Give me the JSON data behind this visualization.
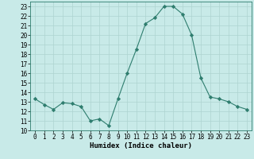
{
  "x": [
    0,
    1,
    2,
    3,
    4,
    5,
    6,
    7,
    8,
    9,
    10,
    11,
    12,
    13,
    14,
    15,
    16,
    17,
    18,
    19,
    20,
    21,
    22,
    23
  ],
  "y": [
    13.3,
    12.7,
    12.2,
    12.9,
    12.8,
    12.5,
    11.0,
    11.2,
    10.5,
    13.3,
    16.0,
    18.5,
    21.2,
    21.8,
    23.0,
    23.0,
    22.2,
    20.0,
    15.5,
    13.5,
    13.3,
    13.0,
    12.5,
    12.2
  ],
  "line_color": "#2e7d6e",
  "marker": "D",
  "marker_size": 2.2,
  "bg_color": "#c8eae8",
  "grid_color": "#aed4d0",
  "xlabel": "Humidex (Indice chaleur)",
  "ylim": [
    10,
    23.5
  ],
  "yticks": [
    10,
    11,
    12,
    13,
    14,
    15,
    16,
    17,
    18,
    19,
    20,
    21,
    22,
    23
  ],
  "xticks": [
    0,
    1,
    2,
    3,
    4,
    5,
    6,
    7,
    8,
    9,
    10,
    11,
    12,
    13,
    14,
    15,
    16,
    17,
    18,
    19,
    20,
    21,
    22,
    23
  ],
  "xlim": [
    -0.5,
    23.5
  ],
  "xlabel_fontsize": 6.5,
  "tick_fontsize": 5.5
}
